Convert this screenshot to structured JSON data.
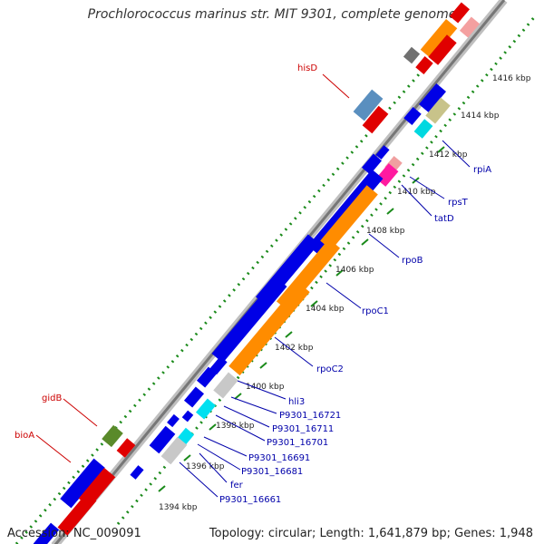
{
  "title": "Prochlorococcus marinus str. MIT 9301, complete genome",
  "footer": {
    "accession": "Accession: NC_009091",
    "topology": "Topology: circular; Length: 1,641,879 bp; Genes: 1,948"
  },
  "colors": {
    "forward_gene": "#e00000",
    "reverse_gene": "#0000e6",
    "rna": "#ff8c00",
    "tick": "#1a8a1a",
    "red_label": "#cc0000",
    "blue_label": "#0000aa"
  },
  "ticks": [
    "1394 kbp",
    "1396 kbp",
    "1398 kbp",
    "1400 kbp",
    "1402 kbp",
    "1404 kbp",
    "1406 kbp",
    "1408 kbp",
    "1410 kbp",
    "1412 kbp",
    "1414 kbp",
    "1416 kbp"
  ],
  "gene_labels": [
    "hisD",
    "gidB",
    "bioA",
    "rpiA",
    "rpsT",
    "tatD",
    "rpoB",
    "rpoC1",
    "rpoC2",
    "hli3",
    "P9301_16721",
    "P9301_16711",
    "P9301_16701",
    "P9301_16691",
    "P9301_16681",
    "fer",
    "P9301_16661"
  ]
}
